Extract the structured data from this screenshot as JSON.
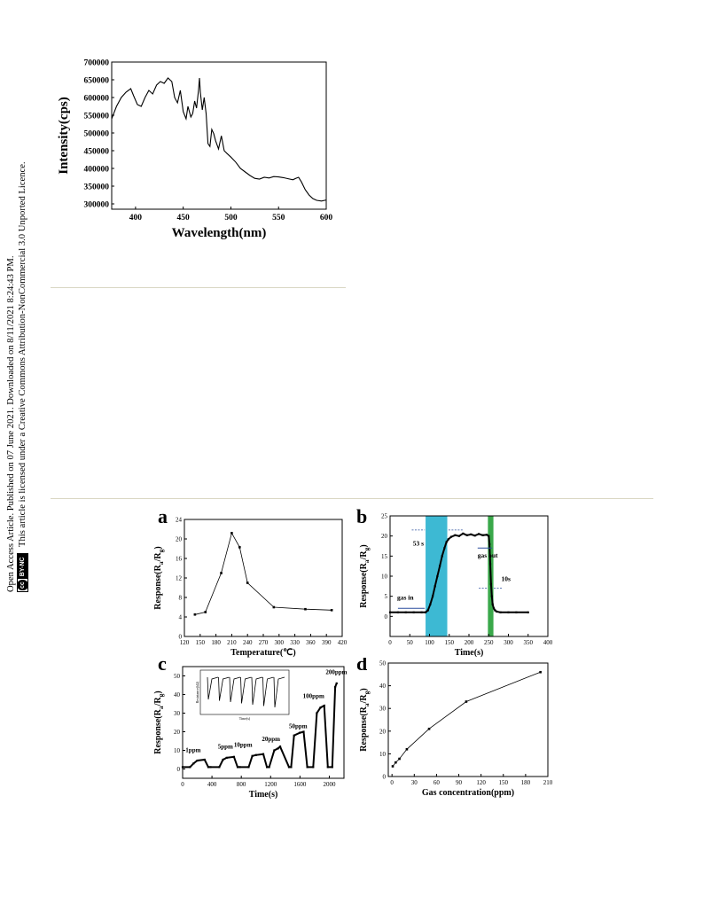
{
  "sidebar": {
    "line1": "Open Access Article. Published on 07 June 2021. Downloaded on 8/11/2021 8:24:43 PM.",
    "line2": "This article is licensed under a Creative Commons Attribution-NonCommercial 3.0 Unported Licence.",
    "badge_cc": "cc",
    "badge_by": "BY-NC"
  },
  "chart_data": [
    {
      "type": "line",
      "id": "spectrum",
      "xlabel": "Wavelength(nm)",
      "ylabel": "Intensity(cps)",
      "xlim": [
        375,
        600
      ],
      "ylim": [
        285000,
        700000
      ],
      "xticks": [
        400,
        450,
        500,
        550,
        600
      ],
      "yticks": [
        300000,
        350000,
        400000,
        450000,
        500000,
        550000,
        600000,
        650000,
        700000
      ],
      "x": [
        375,
        380,
        385,
        390,
        395,
        398,
        402,
        406,
        410,
        414,
        418,
        422,
        426,
        430,
        434,
        438,
        441,
        444,
        447,
        450,
        453,
        455,
        458,
        460,
        462,
        464,
        466,
        467,
        468,
        469,
        470,
        472,
        474,
        476,
        478,
        480,
        482,
        484,
        487,
        490,
        493,
        496,
        500,
        505,
        510,
        515,
        520,
        525,
        530,
        535,
        540,
        545,
        550,
        555,
        560,
        565,
        568,
        571,
        574,
        578,
        582,
        586,
        590,
        595,
        600
      ],
      "y": [
        540000,
        575000,
        600000,
        615000,
        625000,
        605000,
        580000,
        575000,
        600000,
        620000,
        610000,
        635000,
        645000,
        640000,
        655000,
        645000,
        600000,
        585000,
        620000,
        560000,
        540000,
        575000,
        545000,
        555000,
        590000,
        570000,
        620000,
        655000,
        615000,
        590000,
        565000,
        600000,
        555000,
        470000,
        462000,
        510000,
        498000,
        478000,
        455000,
        492000,
        450000,
        442000,
        432000,
        418000,
        400000,
        390000,
        380000,
        372000,
        370000,
        375000,
        373000,
        377000,
        376000,
        374000,
        371000,
        368000,
        372000,
        375000,
        362000,
        340000,
        325000,
        315000,
        310000,
        308000,
        311000
      ]
    },
    {
      "type": "line",
      "id": "a",
      "panel_label": "a",
      "xlabel": "Temperature(℃)",
      "ylabel": "Response(Ra/Rg)",
      "xlim": [
        120,
        420
      ],
      "ylim": [
        0,
        24
      ],
      "xticks": [
        120,
        150,
        180,
        210,
        240,
        270,
        300,
        330,
        360,
        390,
        420
      ],
      "yticks": [
        0,
        4,
        8,
        12,
        16,
        20,
        24
      ],
      "x": [
        140,
        160,
        190,
        210,
        225,
        240,
        290,
        350,
        400
      ],
      "y": [
        4.5,
        5.0,
        13.0,
        21.2,
        18.3,
        11.0,
        6.0,
        5.6,
        5.4
      ]
    },
    {
      "type": "line",
      "id": "b",
      "panel_label": "b",
      "xlabel": "Time(s)",
      "ylabel": "Response(Ra/Rg)",
      "xlim": [
        0,
        400
      ],
      "ylim": [
        -5,
        25
      ],
      "xticks": [
        0,
        50,
        100,
        150,
        200,
        250,
        300,
        350,
        400
      ],
      "yticks": [
        0,
        5,
        10,
        15,
        20,
        25
      ],
      "annotations": [
        "gas in",
        "53 s",
        "gas out",
        "10s"
      ],
      "highlight_bands": [
        {
          "x": [
            90,
            145
          ],
          "color": "#3db9d3"
        },
        {
          "x": [
            248,
            262
          ],
          "color": "#3aa84a"
        }
      ],
      "x": [
        0,
        20,
        40,
        60,
        80,
        90,
        96,
        102,
        108,
        114,
        120,
        126,
        132,
        138,
        143,
        148,
        155,
        165,
        175,
        185,
        195,
        205,
        215,
        225,
        235,
        245,
        250,
        252,
        254,
        256,
        258,
        260,
        263,
        266,
        270,
        280,
        300,
        320,
        350
      ],
      "y": [
        1,
        1,
        1,
        1,
        1,
        1,
        1.5,
        3,
        5,
        7.5,
        10,
        12.5,
        15,
        17,
        18.5,
        19.2,
        19.8,
        20.2,
        20,
        20.6,
        20.2,
        20.4,
        20.1,
        20.5,
        20.2,
        20.3,
        20,
        18,
        13,
        8,
        5,
        3,
        2,
        1.5,
        1.2,
        1,
        1,
        1,
        1
      ]
    },
    {
      "type": "line",
      "id": "c",
      "panel_label": "c",
      "xlabel": "Time(s)",
      "ylabel": "Response(Ra/Rg)",
      "xlim": [
        0,
        2200
      ],
      "ylim": [
        -5,
        55
      ],
      "xticks": [
        0,
        400,
        800,
        1200,
        1600,
        2000
      ],
      "yticks": [
        0,
        10,
        20,
        30,
        40,
        50
      ],
      "annotations": [
        "1ppm",
        "5ppm",
        "10ppm",
        "20ppm",
        "50ppm",
        "100ppm",
        "200ppm"
      ],
      "inset_ylabel": "Resistance(kΩ)",
      "inset_xlabel": "Time(s)",
      "x": [
        0,
        100,
        150,
        200,
        300,
        350,
        380,
        500,
        550,
        600,
        700,
        750,
        780,
        900,
        950,
        1000,
        1100,
        1150,
        1180,
        1250,
        1300,
        1330,
        1450,
        1480,
        1520,
        1600,
        1650,
        1700,
        1780,
        1830,
        1880,
        1930,
        1980,
        2040,
        2080,
        2100
      ],
      "y": [
        1,
        1,
        3,
        4.5,
        5,
        1,
        1,
        1,
        5,
        6,
        6.5,
        1,
        1,
        1,
        7,
        7.5,
        8,
        1,
        1,
        10,
        11,
        12,
        1,
        1,
        18,
        19.5,
        20,
        1,
        1,
        30,
        33,
        34,
        1,
        1,
        44,
        46
      ]
    },
    {
      "type": "line",
      "id": "d",
      "panel_label": "d",
      "xlabel": "Gas concentration(ppm)",
      "ylabel": "Response(Ra/Rg)",
      "xlim": [
        -5,
        210
      ],
      "ylim": [
        0,
        50
      ],
      "xticks": [
        0,
        30,
        60,
        90,
        120,
        150,
        180,
        210
      ],
      "yticks": [
        0,
        10,
        20,
        30,
        40,
        50
      ],
      "x": [
        1,
        5,
        10,
        20,
        50,
        100,
        200
      ],
      "y": [
        4.5,
        6.2,
        7.8,
        12,
        21,
        33,
        46
      ]
    }
  ]
}
